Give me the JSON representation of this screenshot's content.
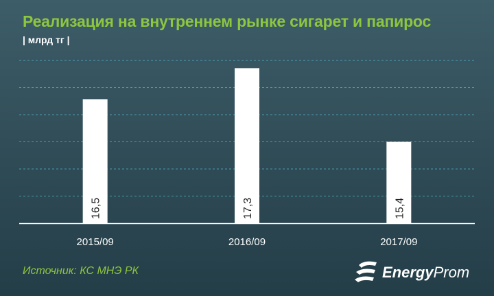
{
  "header": {
    "title": "Реализация на внутреннем рынке сигарет и папирос",
    "unit": "| млрд тг |"
  },
  "footer": {
    "source": "Источник: КС МНЭ РК",
    "logo_bold": "Energy",
    "logo_rest": "Prom"
  },
  "colors": {
    "title": "#8dc63f",
    "bar": "#ffffff",
    "background": "#2f4b56",
    "grid": "#4fb0c6"
  },
  "chart_data": {
    "type": "bar",
    "title": "Реализация на внутреннем рынке сигарет и папирос",
    "unit": "млрд тг",
    "categories": [
      "2015/09",
      "2016/09",
      "2017/09"
    ],
    "values": [
      16.5,
      17.3,
      15.4
    ],
    "value_labels": [
      "16,5",
      "17,3",
      "15,4"
    ],
    "ylim": [
      13.3,
      17.5
    ],
    "grid": true,
    "legend": "none"
  }
}
